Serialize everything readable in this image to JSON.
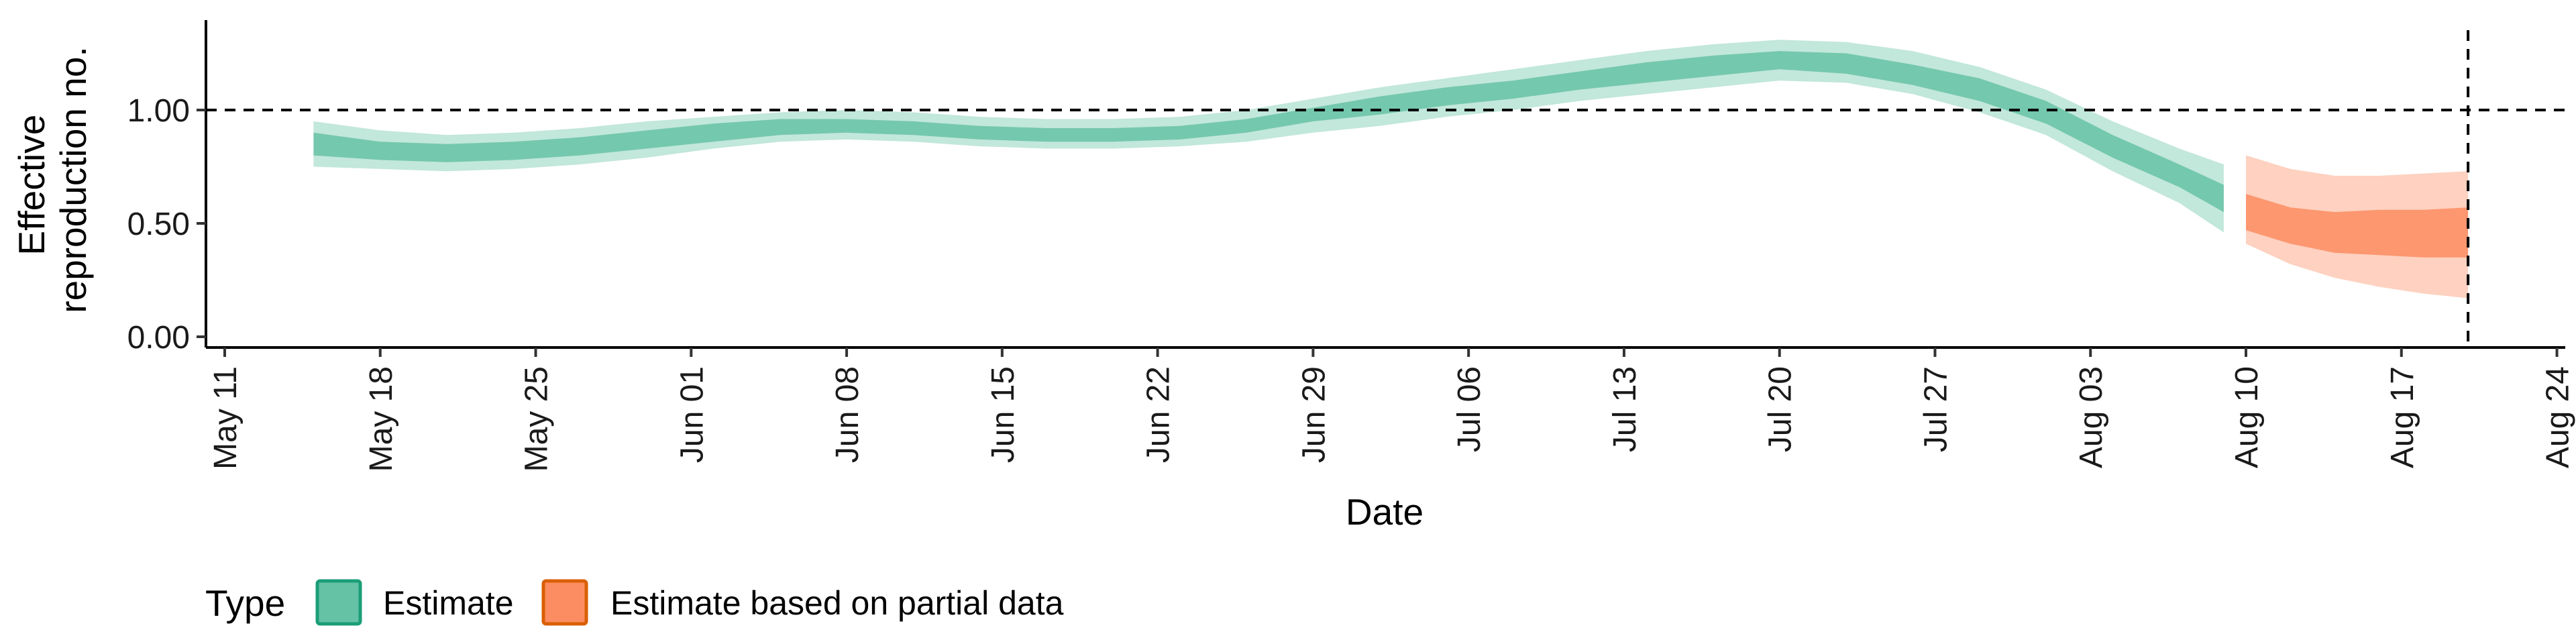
{
  "chart_data": {
    "type": "area",
    "xlabel": "Date",
    "ylabel_lines": [
      "Effective",
      "reproduction no."
    ],
    "x_ticks": [
      "May 11",
      "May 18",
      "May 25",
      "Jun 01",
      "Jun 08",
      "Jun 15",
      "Jun 22",
      "Jun 29",
      "Jul 06",
      "Jul 13",
      "Jul 20",
      "Jul 27",
      "Aug 03",
      "Aug 10",
      "Aug 17",
      "Aug 24"
    ],
    "x_tick_dates": [
      "2020-05-11",
      "2020-05-18",
      "2020-05-25",
      "2020-06-01",
      "2020-06-08",
      "2020-06-15",
      "2020-06-22",
      "2020-06-29",
      "2020-07-06",
      "2020-07-13",
      "2020-07-20",
      "2020-07-27",
      "2020-08-03",
      "2020-08-10",
      "2020-08-17",
      "2020-08-24"
    ],
    "y_ticks": [
      "0.00",
      "0.50",
      "1.00"
    ],
    "y_tick_values": [
      0,
      0.5,
      1.0
    ],
    "ylim": [
      0,
      1.4
    ],
    "xlim": [
      "2020-05-11",
      "2020-08-24"
    ],
    "reference_line_y": 1.0,
    "reference_line_x": "2020-08-20",
    "legend": {
      "title": "Type",
      "position": "bottom-left",
      "items": [
        {
          "label": "Estimate",
          "fill": "#66c2a5",
          "stroke": "#1b9e77"
        },
        {
          "label": "Estimate based on partial data",
          "fill": "#fc8d62",
          "stroke": "#d95f02"
        }
      ]
    },
    "series": [
      {
        "name": "Estimate",
        "color": "#66c2a5",
        "dates": [
          "2020-05-15",
          "2020-05-18",
          "2020-05-21",
          "2020-05-24",
          "2020-05-27",
          "2020-05-30",
          "2020-06-02",
          "2020-06-05",
          "2020-06-08",
          "2020-06-11",
          "2020-06-14",
          "2020-06-17",
          "2020-06-20",
          "2020-06-23",
          "2020-06-26",
          "2020-06-29",
          "2020-07-02",
          "2020-07-05",
          "2020-07-08",
          "2020-07-11",
          "2020-07-14",
          "2020-07-17",
          "2020-07-20",
          "2020-07-23",
          "2020-07-26",
          "2020-07-29",
          "2020-08-01",
          "2020-08-04",
          "2020-08-07",
          "2020-08-09"
        ],
        "median": [
          0.85,
          0.82,
          0.81,
          0.82,
          0.84,
          0.87,
          0.9,
          0.92,
          0.93,
          0.92,
          0.9,
          0.89,
          0.89,
          0.9,
          0.93,
          0.98,
          1.02,
          1.06,
          1.09,
          1.13,
          1.17,
          1.2,
          1.22,
          1.21,
          1.16,
          1.09,
          0.99,
          0.84,
          0.71,
          0.61
        ],
        "inner_lo": [
          0.8,
          0.78,
          0.77,
          0.78,
          0.8,
          0.83,
          0.86,
          0.89,
          0.9,
          0.89,
          0.87,
          0.86,
          0.86,
          0.87,
          0.9,
          0.95,
          0.98,
          1.02,
          1.05,
          1.09,
          1.12,
          1.15,
          1.18,
          1.16,
          1.11,
          1.04,
          0.94,
          0.79,
          0.66,
          0.55
        ],
        "inner_hi": [
          0.9,
          0.86,
          0.85,
          0.86,
          0.88,
          0.91,
          0.94,
          0.96,
          0.96,
          0.95,
          0.93,
          0.92,
          0.92,
          0.93,
          0.96,
          1.01,
          1.06,
          1.1,
          1.13,
          1.17,
          1.21,
          1.24,
          1.26,
          1.25,
          1.2,
          1.14,
          1.04,
          0.89,
          0.76,
          0.67
        ],
        "outer_lo": [
          0.75,
          0.74,
          0.73,
          0.74,
          0.76,
          0.79,
          0.83,
          0.86,
          0.87,
          0.86,
          0.84,
          0.83,
          0.83,
          0.84,
          0.86,
          0.9,
          0.93,
          0.97,
          1.0,
          1.04,
          1.07,
          1.1,
          1.13,
          1.12,
          1.07,
          0.99,
          0.89,
          0.73,
          0.59,
          0.46
        ],
        "outer_hi": [
          0.95,
          0.91,
          0.89,
          0.9,
          0.92,
          0.95,
          0.97,
          0.99,
          1.0,
          0.99,
          0.97,
          0.96,
          0.96,
          0.97,
          1.0,
          1.05,
          1.1,
          1.14,
          1.18,
          1.22,
          1.26,
          1.29,
          1.31,
          1.3,
          1.26,
          1.19,
          1.09,
          0.95,
          0.83,
          0.76
        ]
      },
      {
        "name": "Estimate based on partial data",
        "color": "#fc8d62",
        "dates": [
          "2020-08-10",
          "2020-08-12",
          "2020-08-14",
          "2020-08-16",
          "2020-08-18",
          "2020-08-20"
        ],
        "median": [
          0.55,
          0.49,
          0.45,
          0.46,
          0.45,
          0.45
        ],
        "inner_lo": [
          0.47,
          0.41,
          0.37,
          0.36,
          0.35,
          0.35
        ],
        "inner_hi": [
          0.63,
          0.57,
          0.55,
          0.56,
          0.56,
          0.57
        ],
        "outer_lo": [
          0.41,
          0.32,
          0.26,
          0.22,
          0.19,
          0.17
        ],
        "outer_hi": [
          0.8,
          0.74,
          0.71,
          0.71,
          0.72,
          0.73
        ]
      }
    ]
  }
}
